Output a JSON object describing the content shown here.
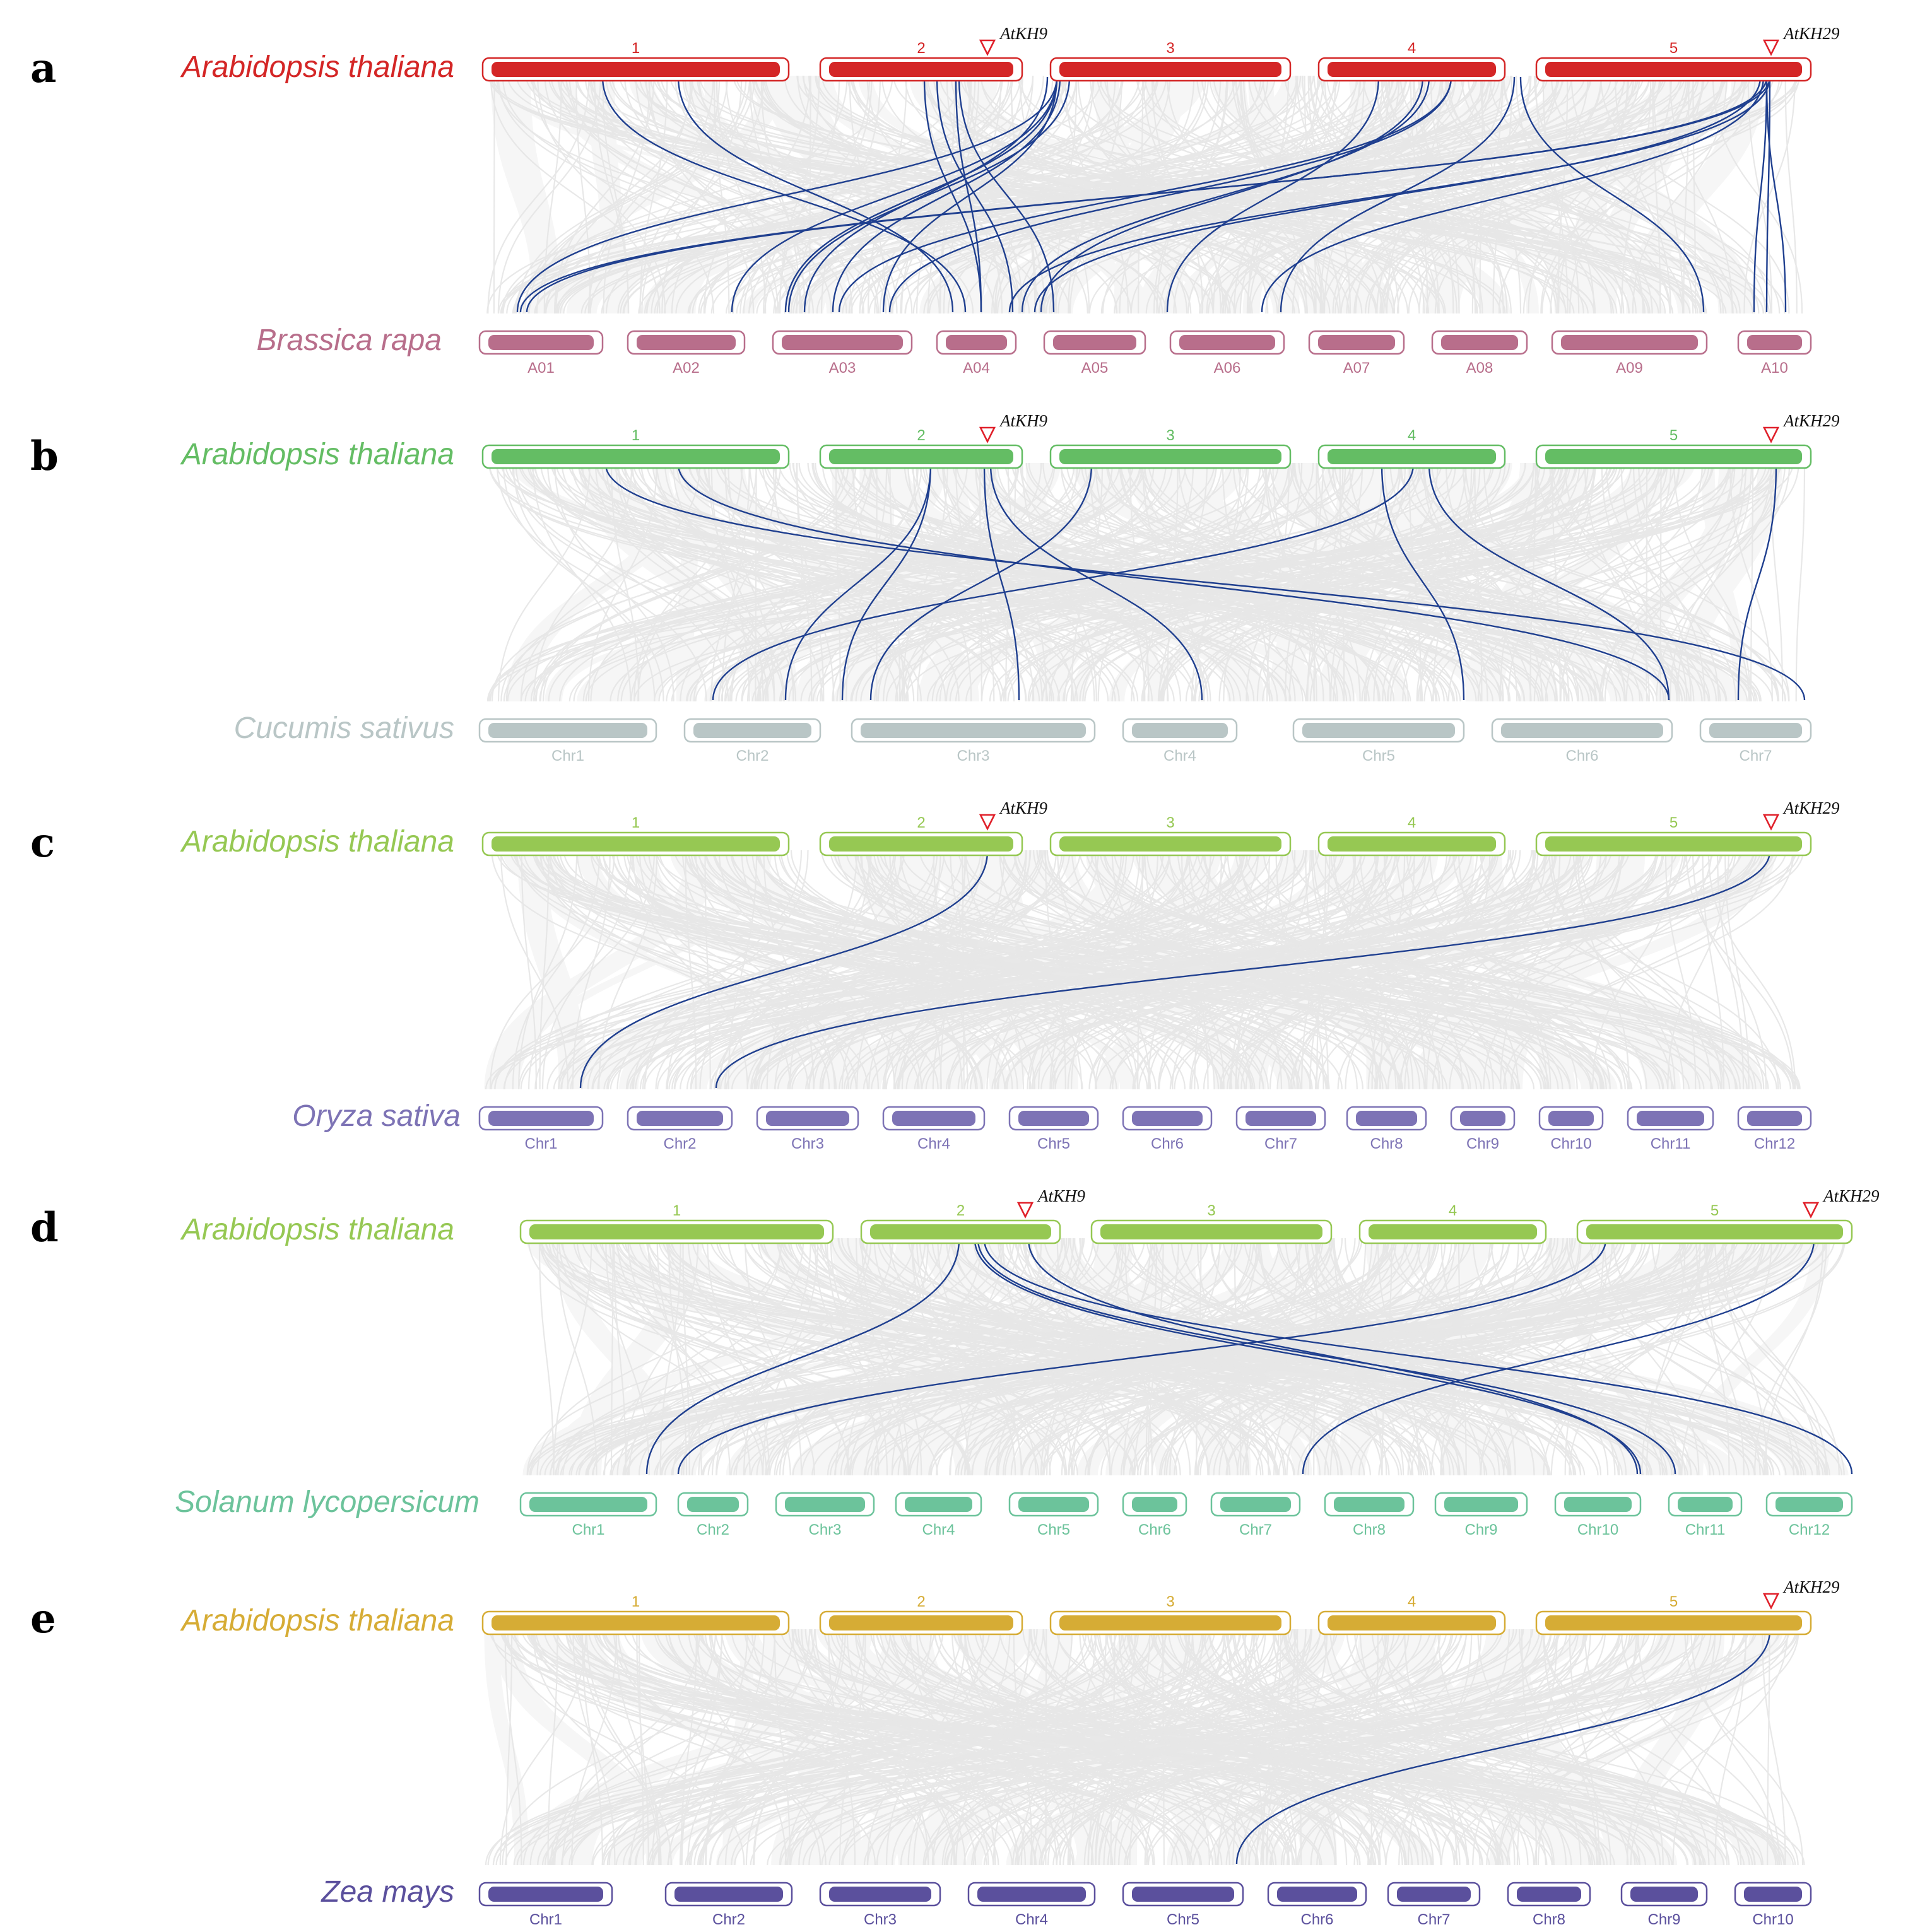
{
  "colors": {
    "background_links": "#e6e6e6",
    "collinear_links": "#1f3f8f",
    "marker": "#e0202a",
    "gene_label": "#111111"
  },
  "panels": [
    {
      "letter": "a",
      "top_species": "Arabidopsis thaliana",
      "top_color": "#d42626",
      "top_chromosomes": [
        "1",
        "2",
        "3",
        "4",
        "5"
      ],
      "bottom_species": "Brassica rapa",
      "bottom_color": "#b86e8b",
      "bottom_chromosomes": [
        "A01",
        "A02",
        "A03",
        "A04",
        "A05",
        "A06",
        "A07",
        "A08",
        "A09",
        "A10"
      ],
      "genes": [
        {
          "label": "AtKH9",
          "chromosome": "2"
        },
        {
          "label": "AtKH29",
          "chromosome": "5"
        }
      ]
    },
    {
      "letter": "b",
      "top_species": "Arabidopsis thaliana",
      "top_color": "#64bd64",
      "top_chromosomes": [
        "1",
        "2",
        "3",
        "4",
        "5"
      ],
      "bottom_species": "Cucumis sativus",
      "bottom_color": "#b9c6c6",
      "bottom_chromosomes": [
        "Chr1",
        "Chr2",
        "Chr3",
        "Chr4",
        "Chr5",
        "Chr6",
        "Chr7"
      ],
      "genes": [
        {
          "label": "AtKH9",
          "chromosome": "2"
        },
        {
          "label": "AtKH29",
          "chromosome": "5"
        }
      ]
    },
    {
      "letter": "c",
      "top_species": "Arabidopsis thaliana",
      "top_color": "#96c853",
      "top_chromosomes": [
        "1",
        "2",
        "3",
        "4",
        "5"
      ],
      "bottom_species": "Oryza sativa",
      "bottom_color": "#7d73b5",
      "bottom_chromosomes": [
        "Chr1",
        "Chr2",
        "Chr3",
        "Chr4",
        "Chr5",
        "Chr6",
        "Chr7",
        "Chr8",
        "Chr9",
        "Chr10",
        "Chr11",
        "Chr12"
      ],
      "genes": [
        {
          "label": "AtKH9",
          "chromosome": "2"
        },
        {
          "label": "AtKH29",
          "chromosome": "5"
        }
      ]
    },
    {
      "letter": "d",
      "top_species": "Arabidopsis thaliana",
      "top_color": "#96c853",
      "top_chromosomes": [
        "1",
        "2",
        "3",
        "4",
        "5"
      ],
      "bottom_species": "Solanum lycopersicum",
      "bottom_color": "#6cc39b",
      "bottom_chromosomes": [
        "Chr1",
        "Chr2",
        "Chr3",
        "Chr4",
        "Chr5",
        "Chr6",
        "Chr7",
        "Chr8",
        "Chr9",
        "Chr10",
        "Chr11",
        "Chr12"
      ],
      "genes": [
        {
          "label": "AtKH9",
          "chromosome": "2"
        },
        {
          "label": "AtKH29",
          "chromosome": "5"
        }
      ]
    },
    {
      "letter": "e",
      "top_species": "Arabidopsis thaliana",
      "top_color": "#d6ac35",
      "top_chromosomes": [
        "1",
        "2",
        "3",
        "4",
        "5"
      ],
      "bottom_species": "Zea mays",
      "bottom_color": "#5b509d",
      "bottom_chromosomes": [
        "Chr1",
        "Chr2",
        "Chr3",
        "Chr4",
        "Chr5",
        "Chr6",
        "Chr7",
        "Chr8",
        "Chr9",
        "Chr10"
      ],
      "genes": [
        {
          "label": "AtKH29",
          "chromosome": "5"
        }
      ]
    }
  ]
}
